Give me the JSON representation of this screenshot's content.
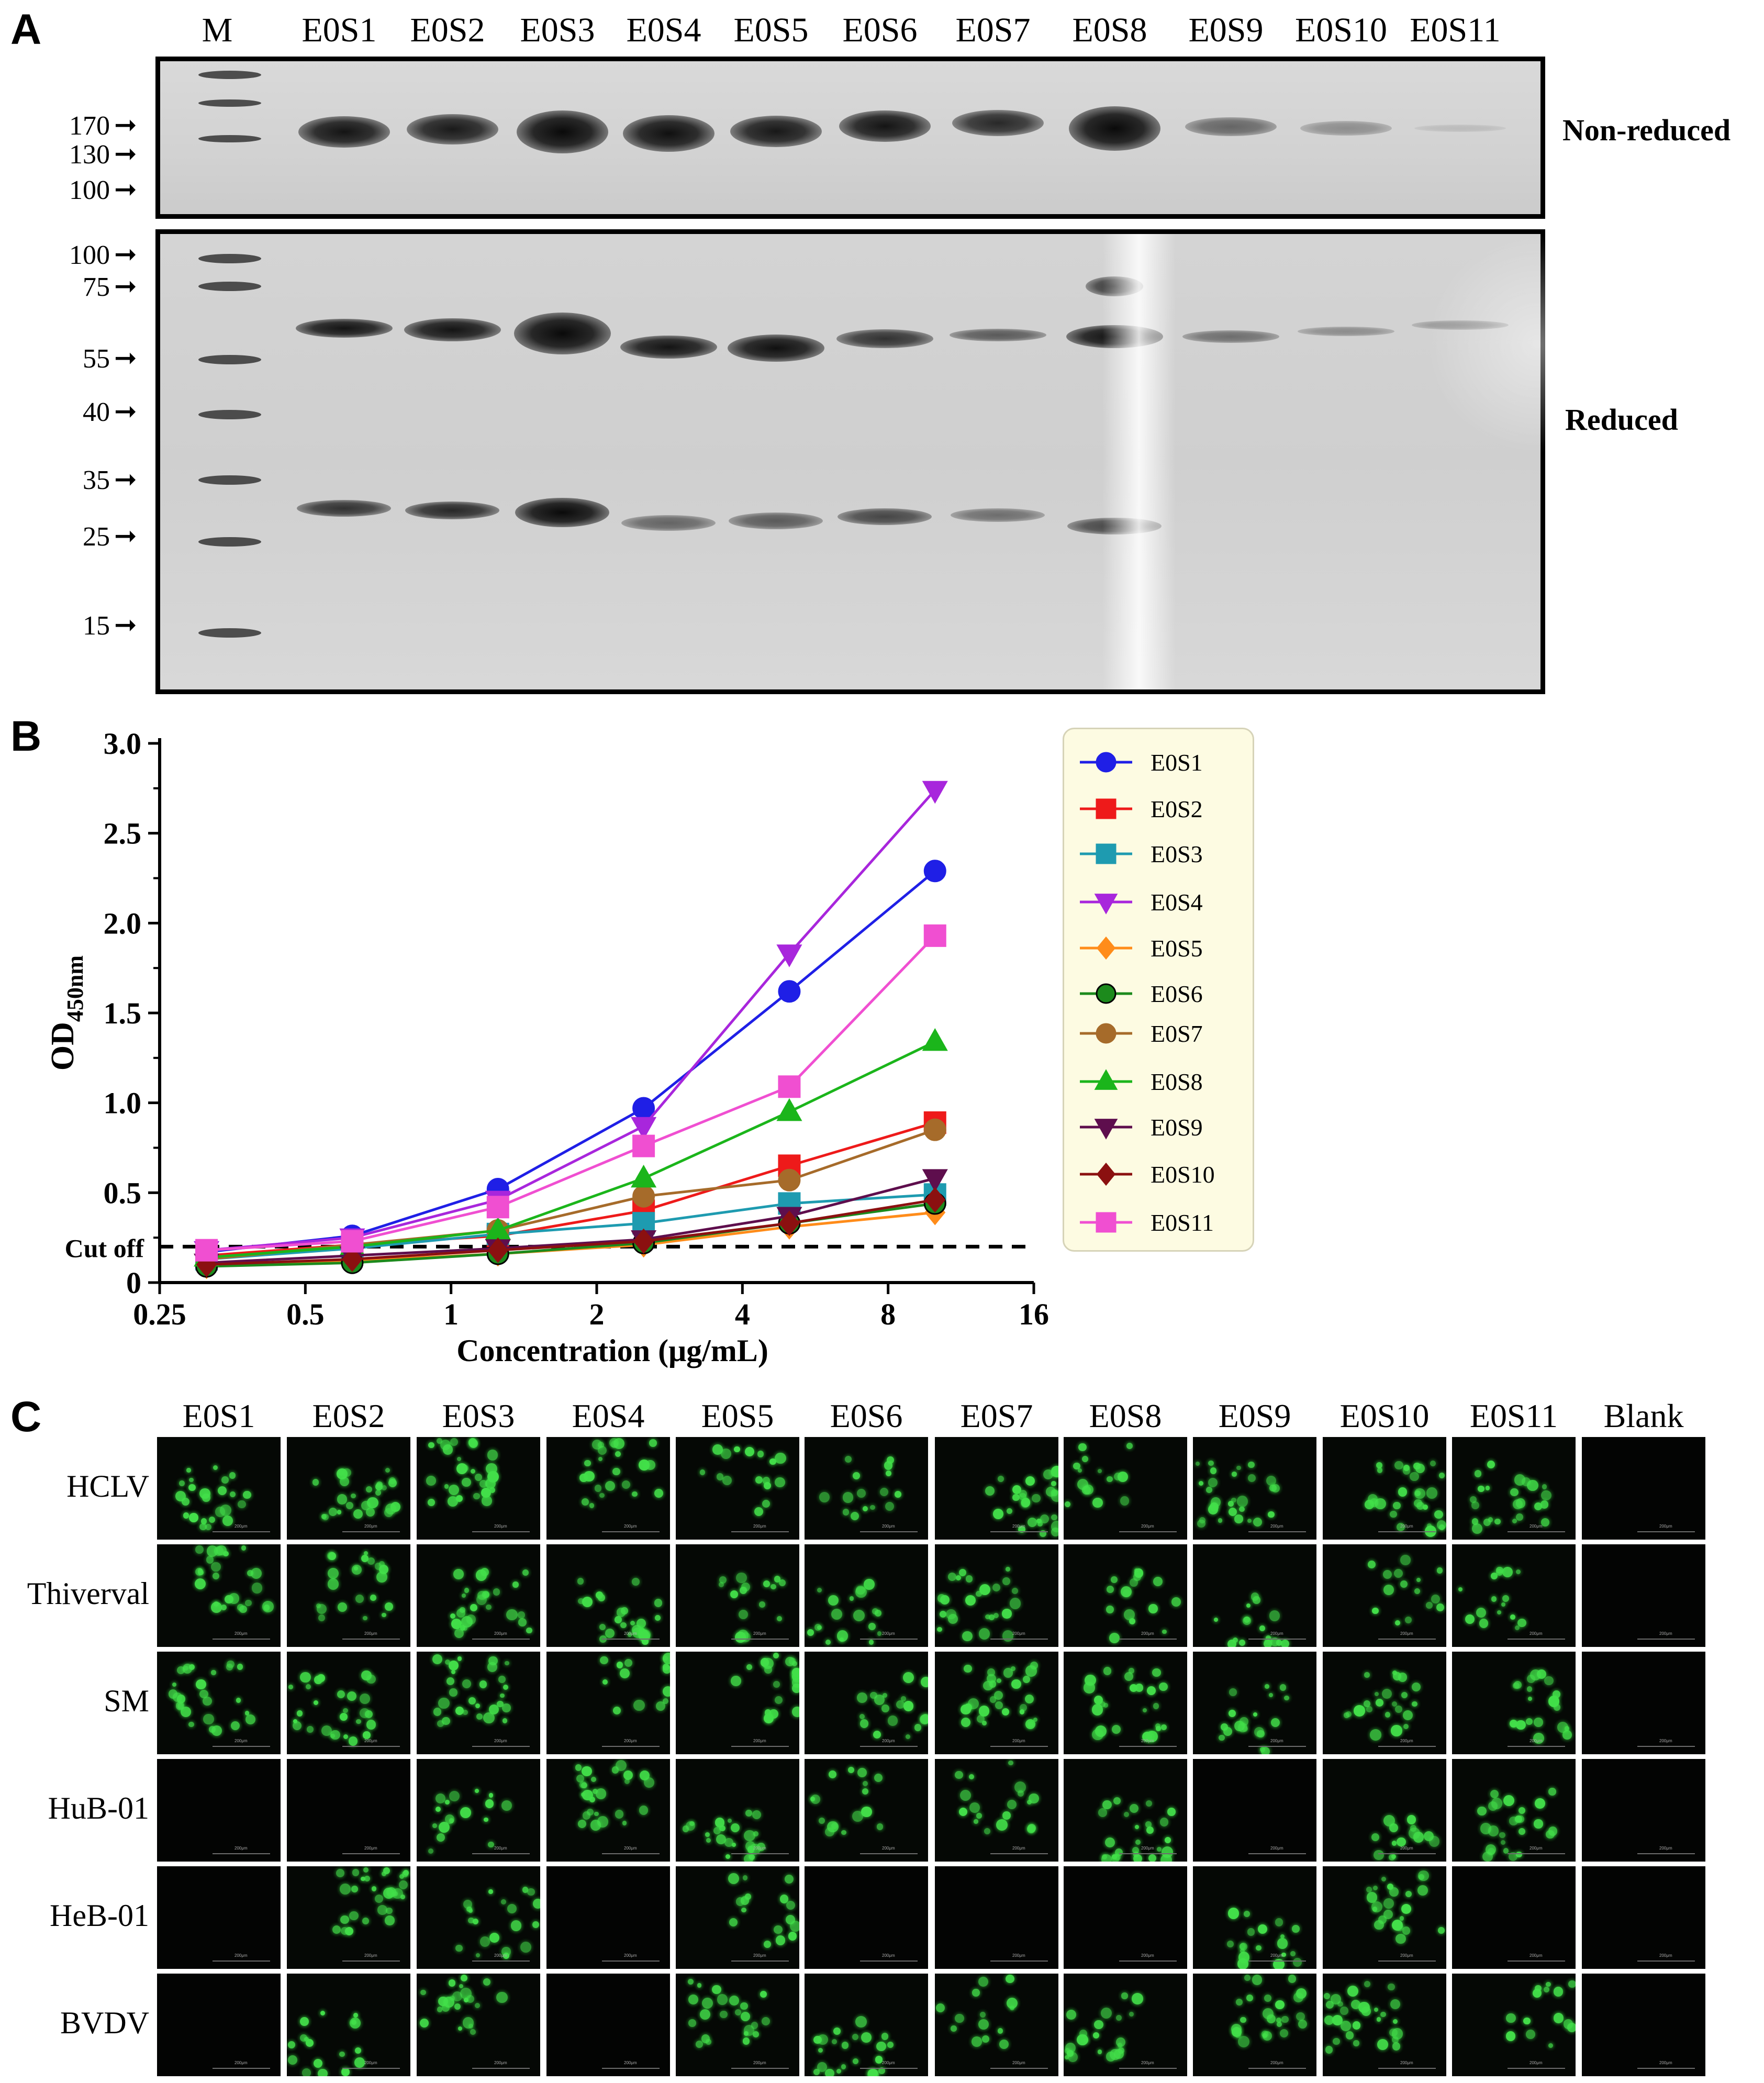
{
  "panel_a": {
    "letter": "A",
    "marker_label": "M",
    "lanes": [
      "E0S1",
      "E0S2",
      "E0S3",
      "E0S4",
      "E0S5",
      "E0S6",
      "E0S7",
      "E0S8",
      "E0S9",
      "E0S10",
      "E0S11"
    ],
    "non_reduced": {
      "label": "Non-reduced",
      "mw": [
        "170",
        "130",
        "100"
      ]
    },
    "reduced": {
      "label": "Reduced",
      "mw": [
        "100",
        "75",
        "55",
        "40",
        "35",
        "25",
        "15"
      ]
    }
  },
  "panel_b": {
    "letter": "B",
    "cutoff_label": "Cut off",
    "cutoff_value": 0.2
  },
  "chart_data": {
    "type": "line",
    "ylabel_main": "OD",
    "ylabel_sub": "450nm",
    "xlabel": "Concentration (μg/mL)",
    "x_scale": "log2",
    "xlim": [
      0.25,
      16
    ],
    "ylim": [
      0,
      3.0
    ],
    "x_ticks": [
      "0.25",
      "0.5",
      "1",
      "2",
      "4",
      "8",
      "16"
    ],
    "x_tick_values": [
      0.25,
      0.5,
      1,
      2,
      4,
      8,
      16
    ],
    "y_ticks": [
      "0",
      "0.5",
      "1.0",
      "1.5",
      "2.0",
      "2.5",
      "3.0"
    ],
    "y_tick_values": [
      0,
      0.5,
      1.0,
      1.5,
      2.0,
      2.5,
      3.0
    ],
    "x": [
      0.3125,
      0.625,
      1.25,
      2.5,
      5,
      10
    ],
    "series": [
      {
        "name": "E0S1",
        "color": "#1f1fe6",
        "marker": "circle",
        "values": [
          0.17,
          0.26,
          0.52,
          0.97,
          1.62,
          2.29
        ]
      },
      {
        "name": "E0S2",
        "color": "#ee1a1a",
        "marker": "square",
        "values": [
          0.15,
          0.21,
          0.26,
          0.4,
          0.65,
          0.89
        ]
      },
      {
        "name": "E0S3",
        "color": "#1e9bb0",
        "marker": "square",
        "values": [
          0.13,
          0.19,
          0.27,
          0.33,
          0.44,
          0.49
        ]
      },
      {
        "name": "E0S4",
        "color": "#a826dc",
        "marker": "triangle-down",
        "values": [
          0.18,
          0.25,
          0.46,
          0.87,
          1.83,
          2.74
        ]
      },
      {
        "name": "E0S5",
        "color": "#ff8c1a",
        "marker": "diamond",
        "values": [
          0.09,
          0.12,
          0.16,
          0.21,
          0.31,
          0.39
        ]
      },
      {
        "name": "E0S6",
        "color": "#1c8a1c",
        "marker": "circle",
        "values": [
          0.09,
          0.11,
          0.16,
          0.22,
          0.33,
          0.44
        ]
      },
      {
        "name": "E0S7",
        "color": "#a66b2a",
        "marker": "circle",
        "values": [
          0.13,
          0.21,
          0.29,
          0.48,
          0.57,
          0.85
        ]
      },
      {
        "name": "E0S8",
        "color": "#1bb51b",
        "marker": "triangle-up",
        "values": [
          0.14,
          0.2,
          0.29,
          0.58,
          0.95,
          1.34
        ]
      },
      {
        "name": "E0S9",
        "color": "#5e0e4d",
        "marker": "triangle-down",
        "values": [
          0.11,
          0.15,
          0.19,
          0.24,
          0.37,
          0.58
        ]
      },
      {
        "name": "E0S10",
        "color": "#8b1010",
        "marker": "diamond",
        "values": [
          0.1,
          0.13,
          0.18,
          0.23,
          0.33,
          0.46
        ]
      },
      {
        "name": "E0S11",
        "color": "#f04fd1",
        "marker": "square",
        "values": [
          0.18,
          0.23,
          0.42,
          0.76,
          1.09,
          1.93
        ]
      }
    ]
  },
  "panel_c": {
    "letter": "C",
    "columns": [
      "E0S1",
      "E0S2",
      "E0S3",
      "E0S4",
      "E0S5",
      "E0S6",
      "E0S7",
      "E0S8",
      "E0S9",
      "E0S10",
      "E0S11",
      "Blank"
    ],
    "rows": [
      "HCLV",
      "Thiverval",
      "SM",
      "HuB-01",
      "HeB-01",
      "BVDV"
    ],
    "scale_text": "200μm",
    "positive": [
      [
        1,
        1,
        1,
        1,
        1,
        1,
        1,
        1,
        1,
        1,
        1,
        0
      ],
      [
        1,
        1,
        1,
        1,
        1,
        1,
        1,
        1,
        1,
        1,
        1,
        0
      ],
      [
        1,
        1,
        1,
        1,
        1,
        1,
        1,
        1,
        1,
        1,
        1,
        0
      ],
      [
        0,
        0,
        1,
        1,
        1,
        1,
        1,
        1,
        0,
        1,
        1,
        0
      ],
      [
        0,
        1,
        1,
        0,
        1,
        0,
        0,
        0,
        1,
        1,
        0,
        0
      ],
      [
        0,
        1,
        1,
        0,
        1,
        1,
        1,
        1,
        1,
        1,
        1,
        0
      ]
    ]
  }
}
